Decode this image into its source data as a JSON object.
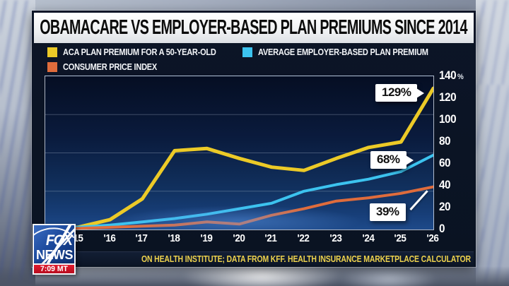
{
  "chyron": {
    "title": "OBAMACARE VS EMPLOYER-BASED PLAN PREMIUMS SINCE 2014",
    "source_text": "ON HEALTH INSTITUTE; DATA FROM KFF. HEALTH INSURANCE MARKETPLACE CALCULATOR"
  },
  "legend": {
    "items": [
      {
        "label": "ACA PLAN PREMIUM FOR A 50-YEAR-OLD",
        "color": "#ecca27"
      },
      {
        "label": "AVERAGE EMPLOYER-BASED PLAN PREMIUM",
        "color": "#3cc3ef"
      },
      {
        "label": "CONSUMER PRICE INDEX",
        "color": "#df6c3c"
      }
    ]
  },
  "chart_data": {
    "type": "line",
    "title": "OBAMACARE VS EMPLOYER-BASED PLAN PREMIUMS SINCE 2014",
    "x": [
      2014,
      2015,
      2016,
      2017,
      2018,
      2019,
      2020,
      2021,
      2022,
      2023,
      2024,
      2025,
      2026
    ],
    "x_labels": [
      "'15",
      "'16",
      "'17",
      "'18",
      "'19",
      "'20",
      "'21",
      "'22",
      "'23",
      "'24",
      "'25",
      "'26"
    ],
    "ylim": [
      0,
      140
    ],
    "y_unit": "%",
    "y_ticks": [
      140,
      120,
      100,
      80,
      60,
      40,
      20,
      0
    ],
    "gridlines": [
      35,
      70,
      105
    ],
    "grid": "faint horizontal lines",
    "legend_position": "top-left above plot",
    "series": [
      {
        "name": "ACA PLAN PREMIUM FOR A 50-YEAR-OLD",
        "color": "#ecca27",
        "values": [
          0,
          2,
          9,
          28,
          72,
          74,
          65,
          57,
          54,
          65,
          75,
          80,
          129
        ]
      },
      {
        "name": "AVERAGE EMPLOYER-BASED PLAN PREMIUM",
        "color": "#3cc3ef",
        "values": [
          0,
          2,
          4,
          7,
          10,
          14,
          19,
          24,
          35,
          41,
          46,
          53,
          68
        ]
      },
      {
        "name": "CONSUMER PRICE INDEX",
        "color": "#df6c3c",
        "values": [
          0,
          1,
          2,
          3,
          4,
          7,
          5,
          13,
          19,
          26,
          29,
          33,
          39
        ]
      }
    ],
    "callouts": [
      {
        "text": "129%",
        "series": "ACA PLAN PREMIUM FOR A 50-YEAR-OLD",
        "year": 2026
      },
      {
        "text": "68%",
        "series": "AVERAGE EMPLOYER-BASED PLAN PREMIUM",
        "year": 2026
      },
      {
        "text": "39%",
        "series": "CONSUMER PRICE INDEX",
        "year": 2026
      }
    ]
  },
  "network_bug": {
    "name_line1": "FOX",
    "name_line2": "NEWS",
    "time": "7:09 MT"
  }
}
